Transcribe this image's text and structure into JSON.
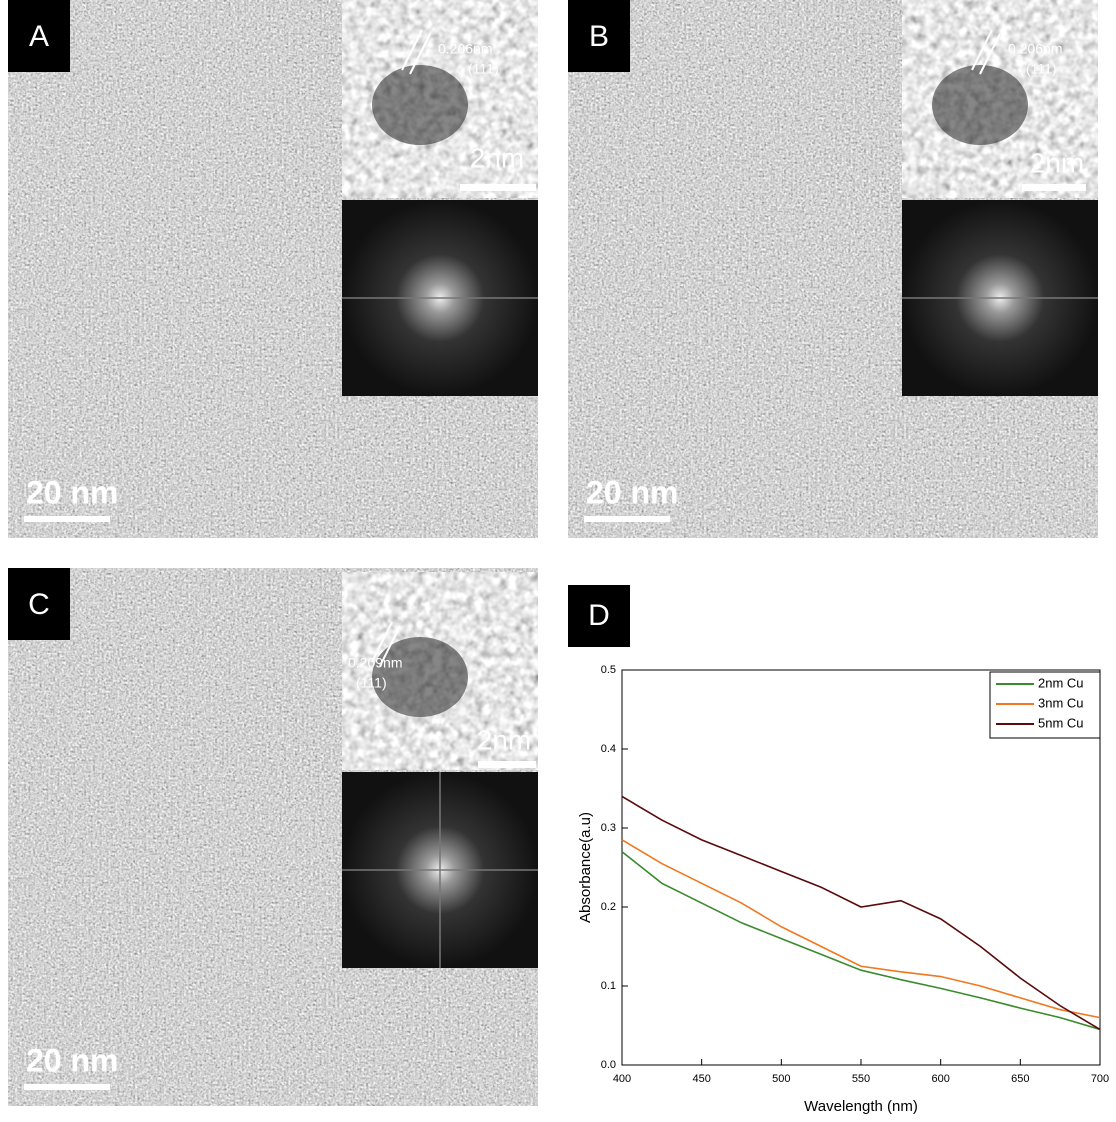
{
  "panels": [
    {
      "label": "A",
      "scale_bar": "20 nm",
      "inset_scale_bar": "2nm",
      "d_spacing": "0.206nm",
      "plane": "(111)"
    },
    {
      "label": "B",
      "scale_bar": "20 nm",
      "inset_scale_bar": "2nm",
      "d_spacing": "0.206nm",
      "plane": "(111)"
    },
    {
      "label": "C",
      "scale_bar": "20 nm",
      "inset_scale_bar": "2nm",
      "d_spacing": "0.209nm",
      "plane": "(111)"
    }
  ],
  "chart_data": {
    "type": "line",
    "panel": "D",
    "x_label": "Wavelength (nm)",
    "y_label": "Absorbance(a.u)",
    "x": [
      400,
      425,
      450,
      475,
      500,
      525,
      550,
      575,
      600,
      625,
      650,
      675,
      700
    ],
    "series": [
      {
        "name": "2nm Cu",
        "color": "#3a8a2e",
        "values": [
          0.27,
          0.23,
          0.205,
          0.18,
          0.16,
          0.14,
          0.12,
          0.108,
          0.097,
          0.085,
          0.072,
          0.06,
          0.045
        ]
      },
      {
        "name": "3nm Cu",
        "color": "#f07820",
        "values": [
          0.285,
          0.255,
          0.23,
          0.205,
          0.175,
          0.15,
          0.125,
          0.118,
          0.112,
          0.1,
          0.085,
          0.07,
          0.06
        ]
      },
      {
        "name": "5nm Cu",
        "color": "#5a0a0a",
        "values": [
          0.34,
          0.31,
          0.285,
          0.265,
          0.245,
          0.225,
          0.2,
          0.208,
          0.185,
          0.15,
          0.11,
          0.075,
          0.045
        ]
      }
    ],
    "xlim": [
      400,
      700
    ],
    "xticks": [
      400,
      450,
      500,
      550,
      600,
      650,
      700
    ],
    "ylim": [
      0,
      0.5
    ],
    "yticks": [
      {
        "value": 0,
        "label": "0.0"
      },
      0.1,
      0.2,
      0.3,
      0.4,
      0.5
    ],
    "legend": "upper right"
  }
}
